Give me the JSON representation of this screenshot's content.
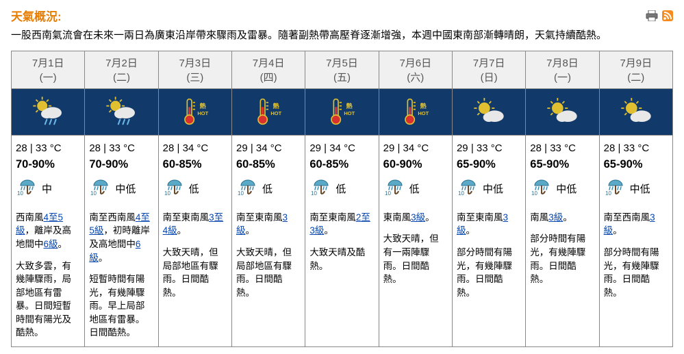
{
  "title": "天氣概況:",
  "summary": "一股西南氣流會在未來一兩日為廣東沿岸帶來驟雨及雷暴。隨著副熱帶高壓脊逐漸增強，本週中國東南部漸轉晴朗，天氣持續酷熱。",
  "colors": {
    "title": "#e87d00",
    "icon_bg": "#113a6a",
    "link": "#0645ad",
    "border": "#888888",
    "head_bg": "#f0f0f0"
  },
  "days": [
    {
      "date": "7月1日",
      "dow": "(一)",
      "icon": "sun-rain",
      "tmin": 28,
      "tmax": 33,
      "rh": "70-90%",
      "psr": "中",
      "wind_parts": [
        [
          "西南風"
        ],
        [
          "link",
          "4至5級"
        ],
        [
          "，離岸及高地間中"
        ],
        [
          "link",
          "6級"
        ],
        [
          "。"
        ]
      ],
      "desc": "大致多雲，有幾陣驟雨，局部地區有雷暴。日間短暫時間有陽光及酷熱。"
    },
    {
      "date": "7月2日",
      "dow": "(二)",
      "icon": "sun-rain",
      "tmin": 28,
      "tmax": 33,
      "rh": "70-90%",
      "psr": "中低",
      "wind_parts": [
        [
          "南至西南風"
        ],
        [
          "link",
          "4至5級"
        ],
        [
          "，初時離岸及高地間中"
        ],
        [
          "link",
          "6級"
        ],
        [
          "。"
        ]
      ],
      "desc": "短暫時間有陽光，有幾陣驟雨。早上局部地區有雷暴。日間酷熱。"
    },
    {
      "date": "7月3日",
      "dow": "(三)",
      "icon": "hot",
      "tmin": 28,
      "tmax": 34,
      "rh": "60-85%",
      "psr": "低",
      "wind_parts": [
        [
          "南至東南風"
        ],
        [
          "link",
          "3至4級"
        ],
        [
          "。"
        ]
      ],
      "desc": "大致天晴，但局部地區有驟雨。日間酷熱。"
    },
    {
      "date": "7月4日",
      "dow": "(四)",
      "icon": "hot",
      "tmin": 29,
      "tmax": 34,
      "rh": "60-85%",
      "psr": "低",
      "wind_parts": [
        [
          "南至東南風"
        ],
        [
          "link",
          "3級"
        ],
        [
          "。"
        ]
      ],
      "desc": "大致天晴，但局部地區有驟雨。日間酷熱。"
    },
    {
      "date": "7月5日",
      "dow": "(五)",
      "icon": "hot",
      "tmin": 29,
      "tmax": 34,
      "rh": "60-85%",
      "psr": "低",
      "wind_parts": [
        [
          "南至東南風"
        ],
        [
          "link",
          "2至3級"
        ],
        [
          "。"
        ]
      ],
      "desc": "大致天晴及酷熱。"
    },
    {
      "date": "7月6日",
      "dow": "(六)",
      "icon": "hot",
      "tmin": 29,
      "tmax": 34,
      "rh": "60-90%",
      "psr": "低",
      "wind_parts": [
        [
          "東南風"
        ],
        [
          "link",
          "3級"
        ],
        [
          "。"
        ]
      ],
      "desc": "大致天晴，但有一兩陣驟雨。日間酷熱。"
    },
    {
      "date": "7月7日",
      "dow": "(日)",
      "icon": "sun-cloud",
      "tmin": 29,
      "tmax": 33,
      "rh": "65-90%",
      "psr": "中低",
      "wind_parts": [
        [
          "南至東南風"
        ],
        [
          "link",
          "3級"
        ],
        [
          "。"
        ]
      ],
      "desc": "部分時間有陽光，有幾陣驟雨。日間酷熱。"
    },
    {
      "date": "7月8日",
      "dow": "(一)",
      "icon": "sun-cloud",
      "tmin": 28,
      "tmax": 33,
      "rh": "65-90%",
      "psr": "中低",
      "wind_parts": [
        [
          "南風"
        ],
        [
          "link",
          "3級"
        ],
        [
          "。"
        ]
      ],
      "desc": "部分時間有陽光，有幾陣驟雨。日間酷熱。"
    },
    {
      "date": "7月9日",
      "dow": "(二)",
      "icon": "sun-cloud",
      "tmin": 28,
      "tmax": 33,
      "rh": "65-90%",
      "psr": "中低",
      "wind_parts": [
        [
          "南至西南風"
        ],
        [
          "link",
          "3級"
        ],
        [
          "。"
        ]
      ],
      "desc": "部分時間有陽光，有幾陣驟雨。日間酷熱。"
    }
  ]
}
